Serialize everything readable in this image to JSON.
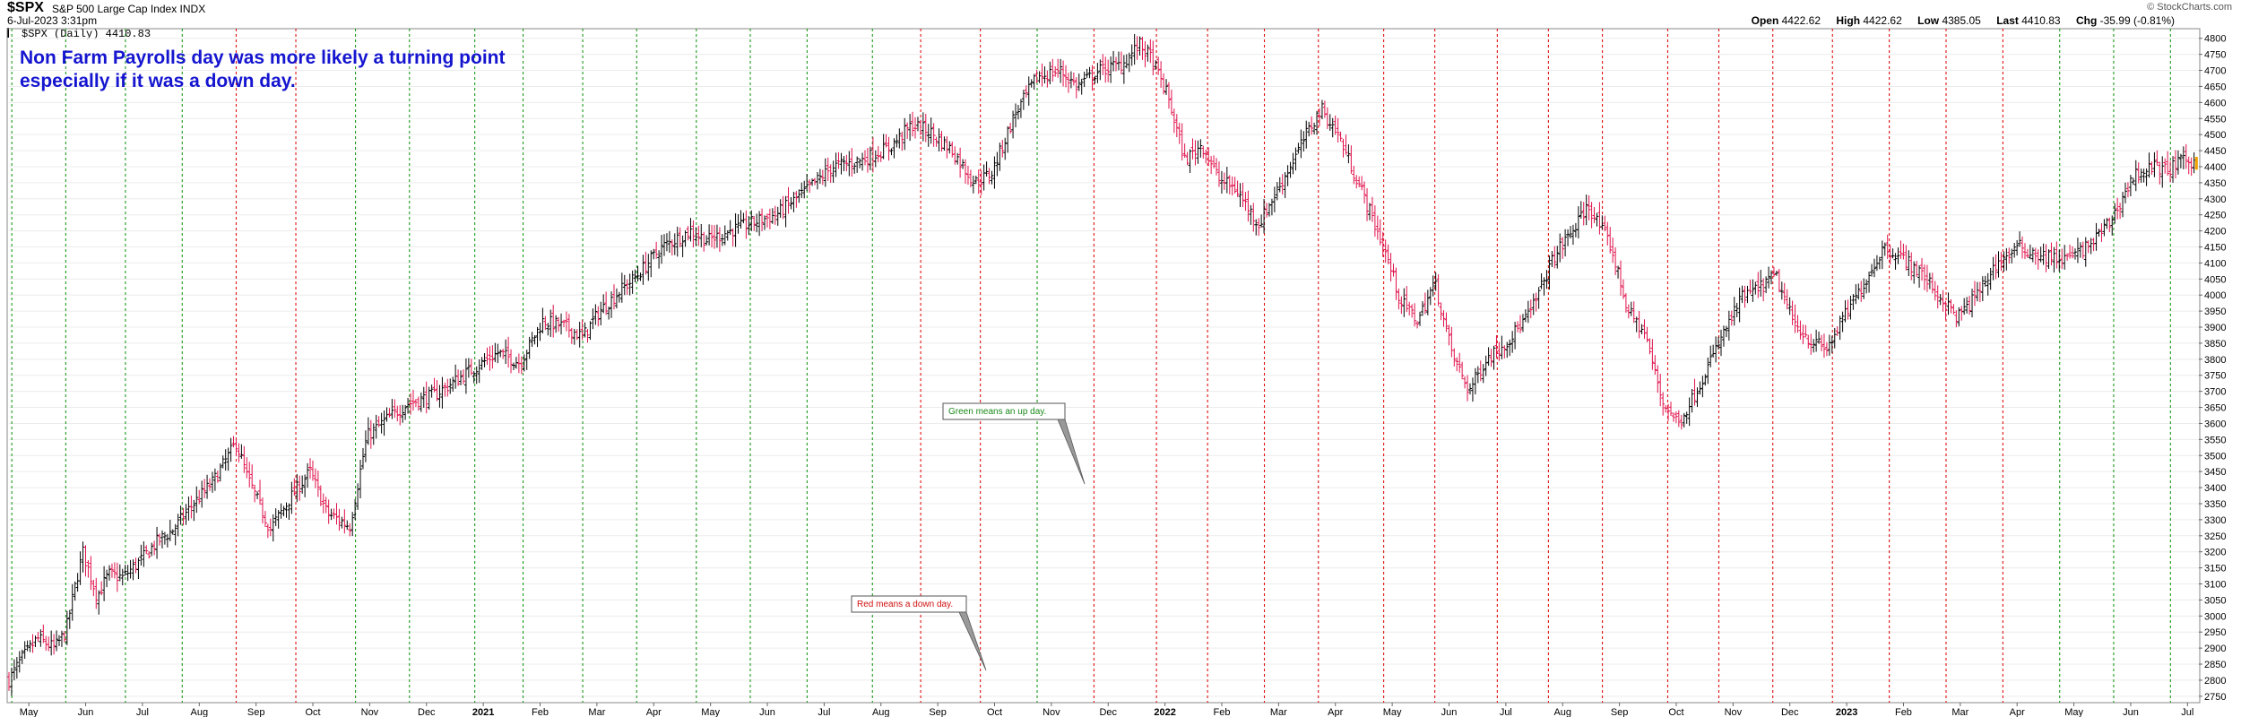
{
  "header": {
    "symbol": "$SPX",
    "subtitle": "S&P 500 Large Cap Index  INDX",
    "date": "6-Jul-2023 3:31pm",
    "legend_label": "$SPX (Daily) 4410.83",
    "copyright": "© StockCharts.com",
    "ohlc": [
      {
        "label": "Open",
        "value": "4422.62"
      },
      {
        "label": "High",
        "value": "4422.62"
      },
      {
        "label": "Low",
        "value": "4385.05"
      },
      {
        "label": "Last",
        "value": "4410.83"
      },
      {
        "label": "Chg",
        "value": "-35.99 (-0.81%)"
      }
    ]
  },
  "annotation": {
    "line1": "Non Farm Payrolls day was more likely a turning point",
    "line2": "especially if it was a down day."
  },
  "callouts": {
    "green": "Green means an up day.",
    "red": "Red means a down day."
  },
  "colors": {
    "up_bar": "#000000",
    "down_bar": "#e0104a",
    "green_line": "#1a9a1a",
    "red_line": "#e01010",
    "last_marker": "#f2a200",
    "annotation": "#1515d0",
    "grid": "#ececec"
  },
  "chart_data": {
    "type": "ohlc",
    "series_name": "$SPX (Daily)",
    "x_axis_labels": [
      {
        "label": "May",
        "t": 0.35
      },
      {
        "label": "Jun",
        "t": 1.35
      },
      {
        "label": "Jul",
        "t": 2.35
      },
      {
        "label": "Aug",
        "t": 3.35
      },
      {
        "label": "Sep",
        "t": 4.35
      },
      {
        "label": "Oct",
        "t": 5.35
      },
      {
        "label": "Nov",
        "t": 6.35
      },
      {
        "label": "Dec",
        "t": 7.35
      },
      {
        "label": "2021",
        "t": 8.35,
        "year": true
      },
      {
        "label": "Feb",
        "t": 9.35
      },
      {
        "label": "Mar",
        "t": 10.35
      },
      {
        "label": "Apr",
        "t": 11.35
      },
      {
        "label": "May",
        "t": 12.35
      },
      {
        "label": "Jun",
        "t": 13.35
      },
      {
        "label": "Jul",
        "t": 14.35
      },
      {
        "label": "Aug",
        "t": 15.35
      },
      {
        "label": "Sep",
        "t": 16.35
      },
      {
        "label": "Oct",
        "t": 17.35
      },
      {
        "label": "Nov",
        "t": 18.35
      },
      {
        "label": "Dec",
        "t": 19.35
      },
      {
        "label": "2022",
        "t": 20.35,
        "year": true
      },
      {
        "label": "Feb",
        "t": 21.35
      },
      {
        "label": "Mar",
        "t": 22.35
      },
      {
        "label": "Apr",
        "t": 23.35
      },
      {
        "label": "May",
        "t": 24.35
      },
      {
        "label": "Jun",
        "t": 25.35
      },
      {
        "label": "Jul",
        "t": 26.35
      },
      {
        "label": "Aug",
        "t": 27.35
      },
      {
        "label": "Sep",
        "t": 28.35
      },
      {
        "label": "Oct",
        "t": 29.35
      },
      {
        "label": "Nov",
        "t": 30.35
      },
      {
        "label": "Dec",
        "t": 31.35
      },
      {
        "label": "2023",
        "t": 32.35,
        "year": true
      },
      {
        "label": "Feb",
        "t": 33.35
      },
      {
        "label": "Mar",
        "t": 34.35
      },
      {
        "label": "Apr",
        "t": 35.35
      },
      {
        "label": "May",
        "t": 36.35
      },
      {
        "label": "Jun",
        "t": 37.35
      },
      {
        "label": "Jul",
        "t": 38.35
      }
    ],
    "y_ticks": [
      2750,
      2800,
      2850,
      2900,
      2950,
      3000,
      3050,
      3100,
      3150,
      3200,
      3250,
      3300,
      3350,
      3400,
      3450,
      3500,
      3550,
      3600,
      3650,
      3700,
      3750,
      3800,
      3850,
      3900,
      3950,
      4000,
      4050,
      4100,
      4150,
      4200,
      4250,
      4300,
      4350,
      4400,
      4450,
      4500,
      4550,
      4600,
      4650,
      4700,
      4750,
      4800
    ],
    "ylim": [
      2730,
      4830
    ],
    "t_range": [
      0,
      38.55
    ],
    "nfp_lines": [
      {
        "t": 0.05,
        "color": "green"
      },
      {
        "t": 1.0,
        "color": "green"
      },
      {
        "t": 2.05,
        "color": "green"
      },
      {
        "t": 3.05,
        "color": "green"
      },
      {
        "t": 4.0,
        "color": "red"
      },
      {
        "t": 5.05,
        "color": "red"
      },
      {
        "t": 6.1,
        "color": "green"
      },
      {
        "t": 7.05,
        "color": "green"
      },
      {
        "t": 8.2,
        "color": "green"
      },
      {
        "t": 9.05,
        "color": "green"
      },
      {
        "t": 10.1,
        "color": "green"
      },
      {
        "t": 11.05,
        "color": "green"
      },
      {
        "t": 12.1,
        "color": "green"
      },
      {
        "t": 13.05,
        "color": "green"
      },
      {
        "t": 14.05,
        "color": "green"
      },
      {
        "t": 15.2,
        "color": "green"
      },
      {
        "t": 16.05,
        "color": "red"
      },
      {
        "t": 17.1,
        "color": "red"
      },
      {
        "t": 18.1,
        "color": "green"
      },
      {
        "t": 19.1,
        "color": "red"
      },
      {
        "t": 20.2,
        "color": "red"
      },
      {
        "t": 21.1,
        "color": "red"
      },
      {
        "t": 22.1,
        "color": "red"
      },
      {
        "t": 23.05,
        "color": "red"
      },
      {
        "t": 24.2,
        "color": "red"
      },
      {
        "t": 25.1,
        "color": "red"
      },
      {
        "t": 26.2,
        "color": "red"
      },
      {
        "t": 27.1,
        "color": "red"
      },
      {
        "t": 28.05,
        "color": "red"
      },
      {
        "t": 29.2,
        "color": "red"
      },
      {
        "t": 30.1,
        "color": "red"
      },
      {
        "t": 31.05,
        "color": "red"
      },
      {
        "t": 32.1,
        "color": "red"
      },
      {
        "t": 33.1,
        "color": "red"
      },
      {
        "t": 34.1,
        "color": "red"
      },
      {
        "t": 35.1,
        "color": "red"
      },
      {
        "t": 36.1,
        "color": "green"
      },
      {
        "t": 37.05,
        "color": "green"
      },
      {
        "t": 38.05,
        "color": "green"
      }
    ],
    "trend_points": [
      [
        0.0,
        2800
      ],
      [
        0.2,
        2860
      ],
      [
        0.5,
        2930
      ],
      [
        0.8,
        2900
      ],
      [
        1.0,
        2950
      ],
      [
        1.15,
        3080
      ],
      [
        1.3,
        3200
      ],
      [
        1.55,
        3060
      ],
      [
        1.75,
        3130
      ],
      [
        2.0,
        3120
      ],
      [
        2.3,
        3170
      ],
      [
        2.6,
        3230
      ],
      [
        2.9,
        3270
      ],
      [
        3.2,
        3340
      ],
      [
        3.6,
        3420
      ],
      [
        4.0,
        3540
      ],
      [
        4.2,
        3430
      ],
      [
        4.6,
        3270
      ],
      [
        5.0,
        3380
      ],
      [
        5.3,
        3450
      ],
      [
        5.6,
        3320
      ],
      [
        6.0,
        3280
      ],
      [
        6.3,
        3560
      ],
      [
        6.7,
        3620
      ],
      [
        7.0,
        3660
      ],
      [
        7.5,
        3690
      ],
      [
        8.0,
        3750
      ],
      [
        8.6,
        3820
      ],
      [
        9.0,
        3790
      ],
      [
        9.4,
        3920
      ],
      [
        9.8,
        3900
      ],
      [
        10.1,
        3870
      ],
      [
        10.4,
        3950
      ],
      [
        10.8,
        4020
      ],
      [
        11.0,
        4050
      ],
      [
        11.5,
        4150
      ],
      [
        12.0,
        4200
      ],
      [
        12.3,
        4170
      ],
      [
        12.7,
        4200
      ],
      [
        13.0,
        4220
      ],
      [
        13.5,
        4250
      ],
      [
        14.0,
        4320
      ],
      [
        14.5,
        4400
      ],
      [
        15.0,
        4420
      ],
      [
        15.5,
        4460
      ],
      [
        15.9,
        4530
      ],
      [
        16.2,
        4510
      ],
      [
        16.6,
        4450
      ],
      [
        17.0,
        4350
      ],
      [
        17.3,
        4380
      ],
      [
        17.7,
        4560
      ],
      [
        18.1,
        4680
      ],
      [
        18.5,
        4700
      ],
      [
        18.8,
        4650
      ],
      [
        19.2,
        4700
      ],
      [
        19.6,
        4720
      ],
      [
        19.9,
        4780
      ],
      [
        20.1,
        4740
      ],
      [
        20.4,
        4620
      ],
      [
        20.7,
        4420
      ],
      [
        21.0,
        4470
      ],
      [
        21.3,
        4360
      ],
      [
        21.6,
        4330
      ],
      [
        22.0,
        4220
      ],
      [
        22.4,
        4350
      ],
      [
        22.9,
        4520
      ],
      [
        23.1,
        4580
      ],
      [
        23.4,
        4500
      ],
      [
        23.8,
        4330
      ],
      [
        24.2,
        4150
      ],
      [
        24.5,
        3980
      ],
      [
        24.8,
        3920
      ],
      [
        25.1,
        4040
      ],
      [
        25.4,
        3820
      ],
      [
        25.7,
        3700
      ],
      [
        26.0,
        3800
      ],
      [
        26.4,
        3860
      ],
      [
        26.8,
        3950
      ],
      [
        27.2,
        4120
      ],
      [
        27.6,
        4220
      ],
      [
        27.8,
        4280
      ],
      [
        28.2,
        4150
      ],
      [
        28.5,
        3950
      ],
      [
        28.8,
        3880
      ],
      [
        29.1,
        3670
      ],
      [
        29.4,
        3600
      ],
      [
        29.7,
        3700
      ],
      [
        30.1,
        3850
      ],
      [
        30.5,
        3990
      ],
      [
        30.8,
        4020
      ],
      [
        31.1,
        4060
      ],
      [
        31.4,
        3920
      ],
      [
        31.7,
        3860
      ],
      [
        32.0,
        3830
      ],
      [
        32.3,
        3930
      ],
      [
        32.7,
        4050
      ],
      [
        33.0,
        4150
      ],
      [
        33.3,
        4120
      ],
      [
        33.7,
        4060
      ],
      [
        34.0,
        3990
      ],
      [
        34.3,
        3930
      ],
      [
        34.6,
        3990
      ],
      [
        35.0,
        4100
      ],
      [
        35.4,
        4150
      ],
      [
        35.8,
        4120
      ],
      [
        36.2,
        4110
      ],
      [
        36.6,
        4150
      ],
      [
        37.0,
        4230
      ],
      [
        37.4,
        4370
      ],
      [
        37.7,
        4400
      ],
      [
        38.0,
        4390
      ],
      [
        38.3,
        4420
      ],
      [
        38.5,
        4411
      ]
    ],
    "last_value": 4410.83
  }
}
